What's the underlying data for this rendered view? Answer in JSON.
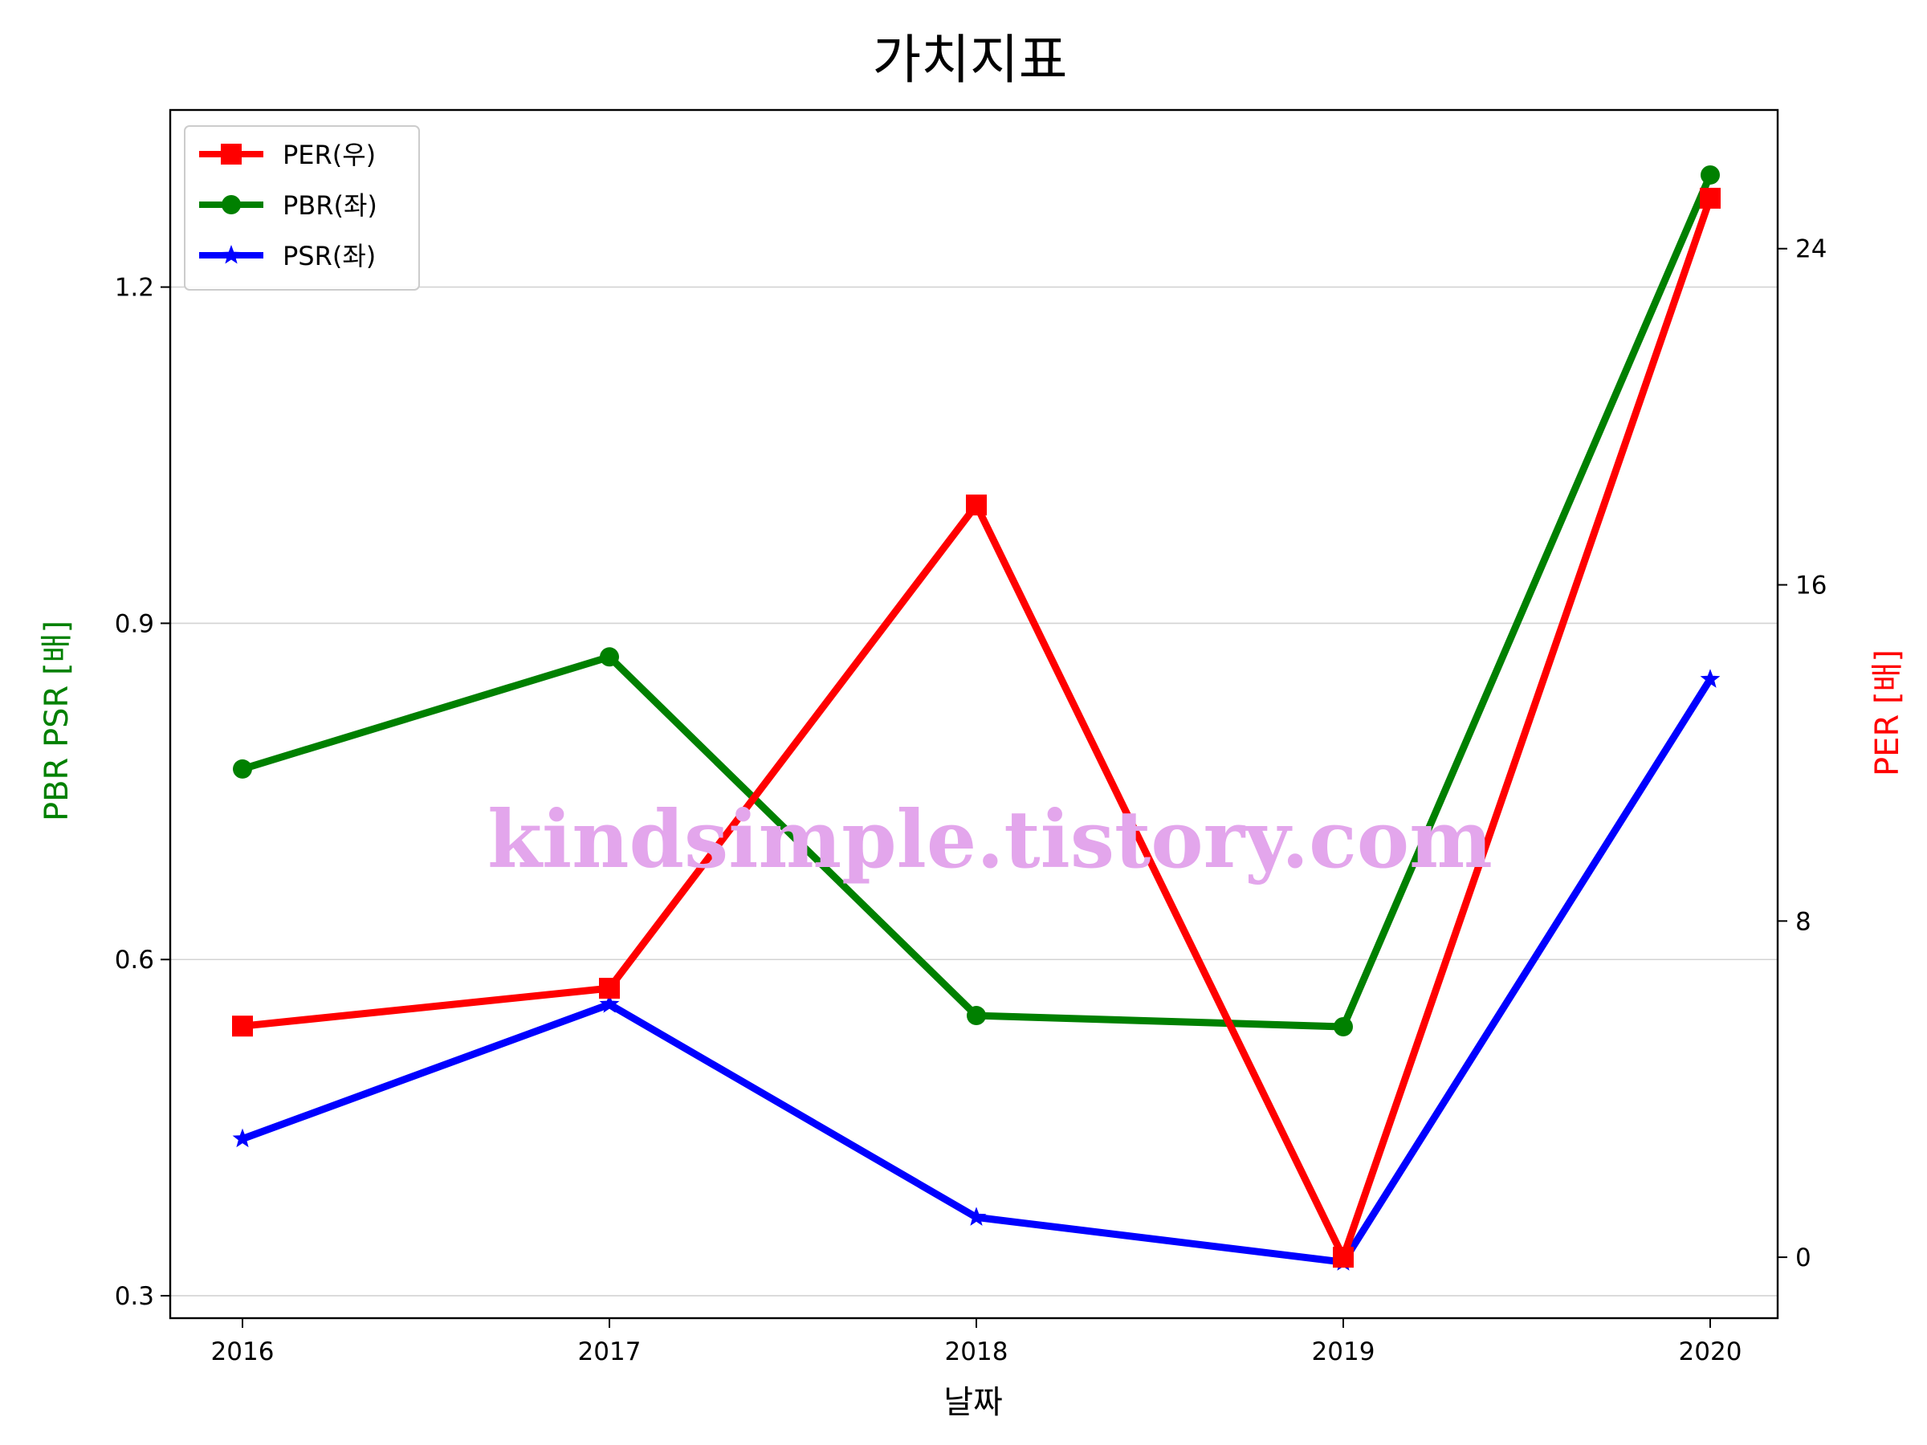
{
  "chart_data": {
    "type": "line",
    "title": "가치지표",
    "xlabel": "날짜",
    "ylabel_left": "PBR PSR [배]",
    "ylabel_right": "PER [배]",
    "categories": [
      "2016",
      "2017",
      "2018",
      "2019",
      "2020"
    ],
    "ylim_left": [
      0.28,
      1.358
    ],
    "ylim_right": [
      -1.45,
      27.3
    ],
    "yticks_left": [
      "0.3",
      "0.6",
      "0.9",
      "1.2"
    ],
    "yticks_right": [
      "0",
      "8",
      "16",
      "24"
    ],
    "grid": "horizontal (left axis)",
    "legend_position": "top-left",
    "series": [
      {
        "name": "PER(우)",
        "axis": "right",
        "marker": "square",
        "color": "#ff0000",
        "values": [
          5.5,
          6.4,
          17.9,
          0.0,
          25.2
        ]
      },
      {
        "name": "PBR(좌)",
        "axis": "left",
        "marker": "circle",
        "color": "#008000",
        "values": [
          0.77,
          0.87,
          0.55,
          0.54,
          1.3
        ]
      },
      {
        "name": "PSR(좌)",
        "axis": "left",
        "marker": "star",
        "color": "#0000ff",
        "values": [
          0.44,
          0.56,
          0.37,
          0.33,
          0.85
        ]
      }
    ],
    "watermark": "kindsimple.tistory.com"
  }
}
